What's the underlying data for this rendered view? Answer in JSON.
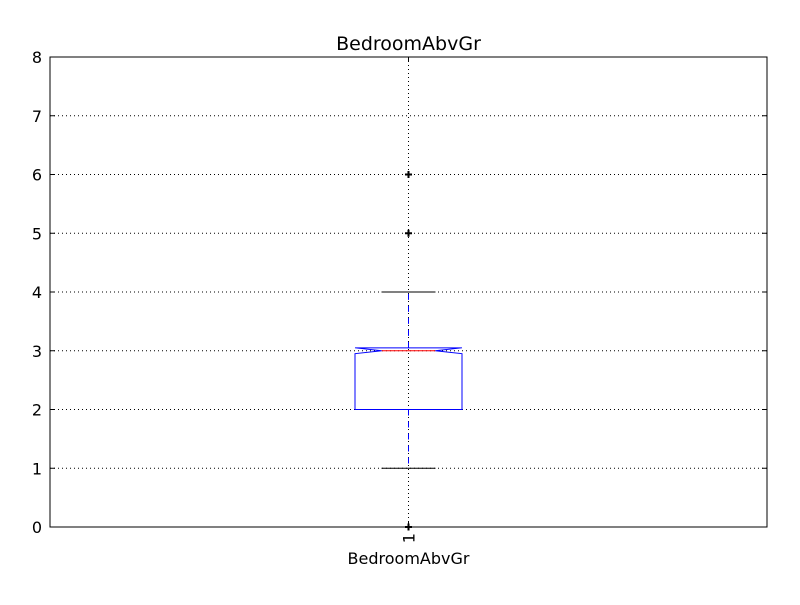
{
  "chart_data": {
    "type": "box",
    "title": "BedroomAbvGr",
    "xlabel": "BedroomAbvGr",
    "ylabel": "",
    "categories": [
      "1"
    ],
    "ylim": [
      0,
      8
    ],
    "yticks": [
      0,
      1,
      2,
      3,
      4,
      5,
      6,
      7,
      8
    ],
    "grid": true,
    "notch": true,
    "boxes": [
      {
        "category": "1",
        "whisker_low": 1,
        "q1": 2,
        "median": 3,
        "q3": 3,
        "whisker_high": 4,
        "notch_low": 2.95,
        "notch_high": 3.05,
        "outliers": [
          0,
          5,
          6
        ]
      }
    ],
    "colors": {
      "box": "#0000ff",
      "median": "#ff0000",
      "whisker": "#0000ff",
      "cap": "#000000",
      "flier": "#000000",
      "grid": "#000000"
    }
  }
}
